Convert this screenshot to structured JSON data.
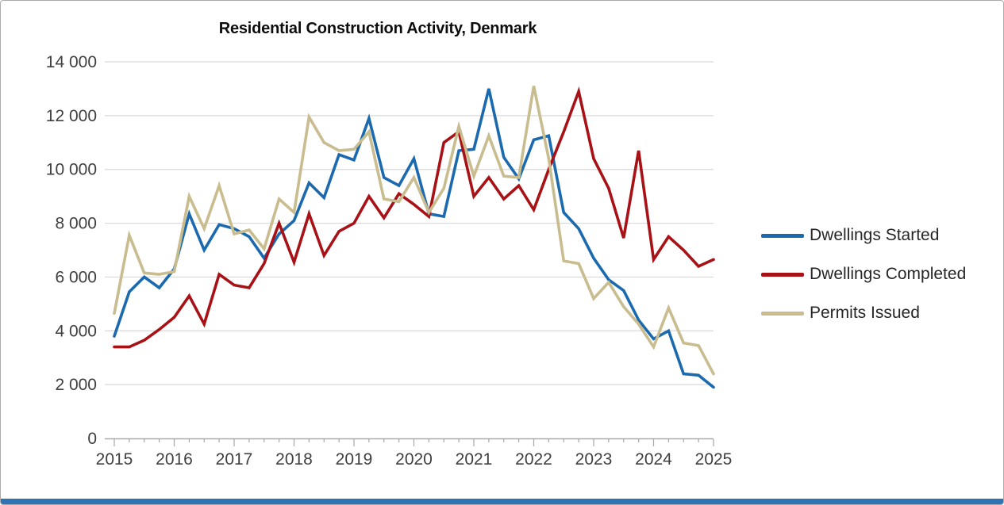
{
  "title": "Residential Construction Activity, Denmark",
  "legend": [
    {
      "id": "dwellings-started",
      "label": "Dwellings Started",
      "color": "#1b69ae"
    },
    {
      "id": "dwellings-completed",
      "label": "Dwellings Completed",
      "color": "#a81116"
    },
    {
      "id": "permits-issued",
      "label": "Permits Issued",
      "color": "#c9bc8f"
    }
  ],
  "colors": {
    "gridline": "#d9d9d9",
    "axis_line": "#ababab",
    "tick_mark": "#a6a6a6",
    "tick_label": "#3f3f3f",
    "title_text": "#0d0d0d",
    "legend_text": "#262626",
    "bottom_bar": "#2e74b5",
    "background": "#ffffff"
  },
  "chart_data": {
    "type": "line",
    "title": "Residential Construction Activity, Denmark",
    "xlabel": "",
    "ylabel": "",
    "ylim": [
      0,
      14000
    ],
    "grid": true,
    "legend_position": "right",
    "frequency": "quarterly",
    "y_ticks": [
      {
        "value": 0,
        "label": "0"
      },
      {
        "value": 2000,
        "label": "2 000"
      },
      {
        "value": 4000,
        "label": "4 000"
      },
      {
        "value": 6000,
        "label": "6 000"
      },
      {
        "value": 8000,
        "label": "8 000"
      },
      {
        "value": 10000,
        "label": "10 000"
      },
      {
        "value": 12000,
        "label": "12 000"
      },
      {
        "value": 14000,
        "label": "14 000"
      }
    ],
    "x_year_labels": [
      "2015",
      "2016",
      "2017",
      "2018",
      "2019",
      "2020",
      "2021",
      "2022",
      "2023",
      "2024",
      "2025"
    ],
    "x": [
      "2015-Q1",
      "2015-Q2",
      "2015-Q3",
      "2015-Q4",
      "2016-Q1",
      "2016-Q2",
      "2016-Q3",
      "2016-Q4",
      "2017-Q1",
      "2017-Q2",
      "2017-Q3",
      "2017-Q4",
      "2018-Q1",
      "2018-Q2",
      "2018-Q3",
      "2018-Q4",
      "2019-Q1",
      "2019-Q2",
      "2019-Q3",
      "2019-Q4",
      "2020-Q1",
      "2020-Q2",
      "2020-Q3",
      "2020-Q4",
      "2021-Q1",
      "2021-Q2",
      "2021-Q3",
      "2021-Q4",
      "2022-Q1",
      "2022-Q2",
      "2022-Q3",
      "2022-Q4",
      "2023-Q1",
      "2023-Q2",
      "2023-Q3",
      "2023-Q4",
      "2024-Q1",
      "2024-Q2",
      "2024-Q3",
      "2024-Q4",
      "2025-Q1"
    ],
    "series": [
      {
        "id": "dwellings-started",
        "name": "Dwellings Started",
        "color": "#1b69ae",
        "values": [
          3800,
          5450,
          6000,
          5600,
          6300,
          8350,
          7000,
          7950,
          7800,
          7500,
          6700,
          7600,
          8100,
          9500,
          8950,
          10550,
          10350,
          11900,
          9700,
          9400,
          10400,
          8350,
          8250,
          10700,
          10750,
          13000,
          10450,
          9650,
          11100,
          11250,
          8400,
          7800,
          6700,
          5900,
          5500,
          4400,
          3700,
          4000,
          2400,
          2350,
          1900
        ]
      },
      {
        "id": "dwellings-completed",
        "name": "Dwellings Completed",
        "color": "#a81116",
        "values": [
          3400,
          3400,
          3650,
          4050,
          4500,
          5300,
          4250,
          6100,
          5700,
          5600,
          6500,
          8000,
          6550,
          8350,
          6800,
          7700,
          8000,
          9000,
          8200,
          9100,
          8700,
          8250,
          11000,
          11400,
          9000,
          9700,
          8900,
          9400,
          8500,
          10000,
          11400,
          12900,
          10400,
          9300,
          7450,
          10700,
          6650,
          7500,
          7000,
          6400,
          6650
        ]
      },
      {
        "id": "permits-issued",
        "name": "Permits Issued",
        "color": "#c9bc8f",
        "values": [
          4650,
          7550,
          6150,
          6100,
          6200,
          9000,
          7800,
          9400,
          7600,
          7750,
          7050,
          8900,
          8400,
          11950,
          11000,
          10700,
          10750,
          11400,
          8900,
          8800,
          9700,
          8400,
          9300,
          11600,
          9750,
          11250,
          9750,
          9700,
          13100,
          10400,
          6600,
          6500,
          5200,
          5800,
          4900,
          4250,
          3400,
          4850,
          3550,
          3450,
          2400
        ]
      }
    ]
  }
}
